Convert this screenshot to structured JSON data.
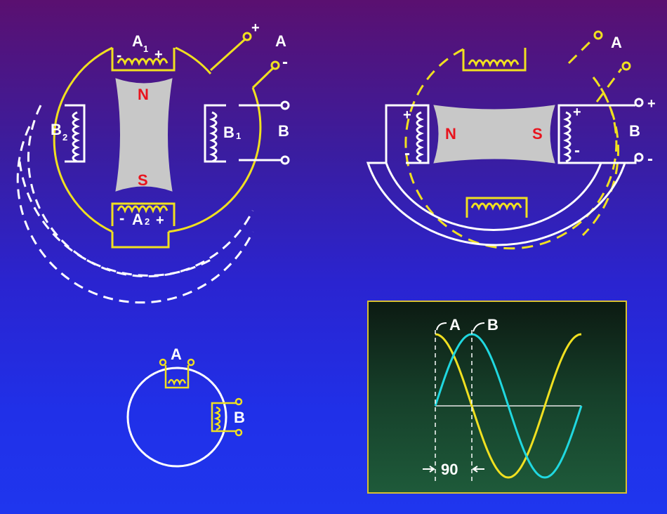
{
  "diagram1": {
    "labels": {
      "a1": "A",
      "a1_sub": "1",
      "a2": "A",
      "a2_sub": "2",
      "b1": "B",
      "b1_sub": "1",
      "b2": "B",
      "b2_sub": "2",
      "north": "N",
      "south": "S",
      "terminal_a": "A",
      "terminal_b": "B",
      "plus": "+",
      "minus": "-"
    }
  },
  "diagram2": {
    "labels": {
      "north": "N",
      "south": "S",
      "terminal_a": "A",
      "terminal_b": "B",
      "plus": "+",
      "minus": "-"
    }
  },
  "diagram3": {
    "labels": {
      "a": "A",
      "b": "B"
    }
  },
  "waveform": {
    "labels": {
      "a": "A",
      "b": "B",
      "phase": "90"
    },
    "colors": {
      "a": "#f0e020",
      "b": "#20d8e0",
      "axis": "#e8e8e8",
      "frame": "#d8c030"
    }
  },
  "colors": {
    "yellow": "#f0e020",
    "white": "#ffffff",
    "red": "#e8141e",
    "gray": "#c8c8c8"
  }
}
